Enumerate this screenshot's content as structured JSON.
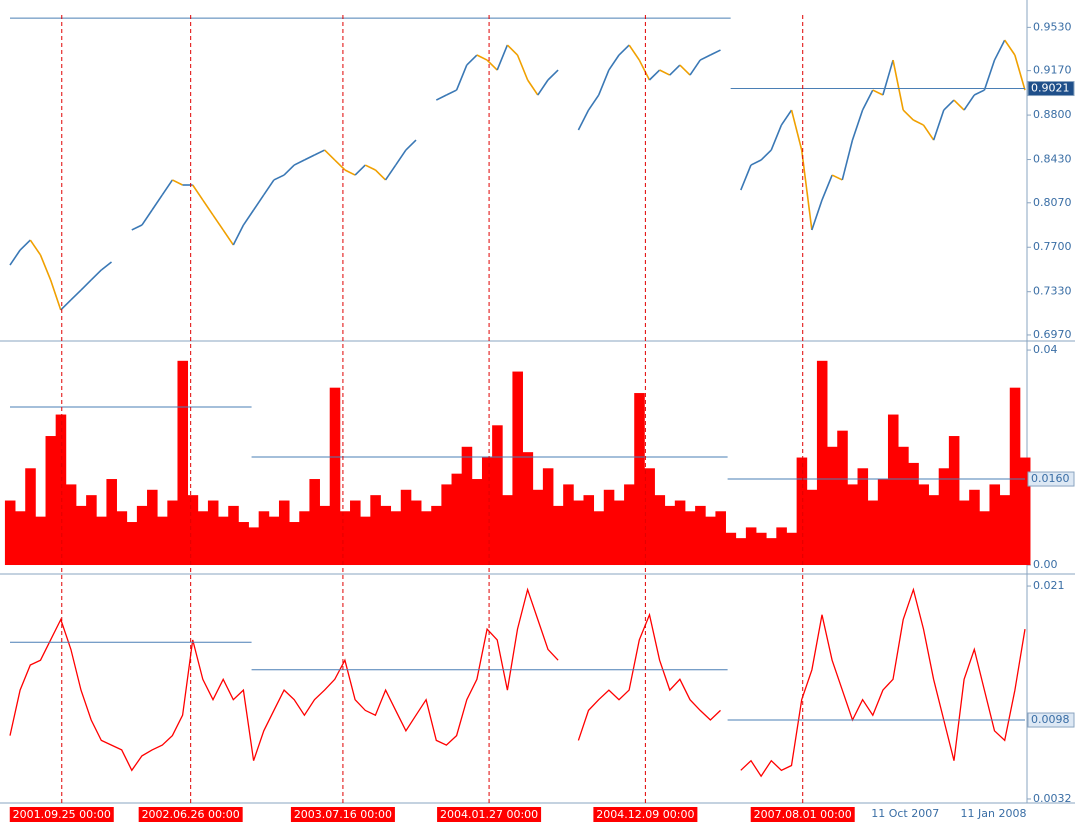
{
  "chart_data": [
    {
      "type": "line",
      "color": "#3a78b5",
      "down_color": "#f0a000",
      "level_color": "#4a7fb5",
      "values": [
        0.7552,
        0.7677,
        0.776,
        0.7636,
        0.7428,
        0.7178,
        0.7261,
        0.7344,
        0.7428,
        0.7511,
        0.7577,
        null,
        0.7844,
        0.7885,
        0.801,
        0.8135,
        0.826,
        0.8218,
        0.8218,
        0.8093,
        0.7968,
        0.7844,
        0.7719,
        0.7885,
        0.801,
        0.8135,
        0.826,
        0.8301,
        0.8384,
        0.8426,
        0.8468,
        0.8509,
        0.8426,
        0.8343,
        0.8301,
        0.8384,
        0.8343,
        0.826,
        0.8384,
        0.8509,
        0.8592,
        null,
        0.8925,
        0.8967,
        0.9008,
        0.9216,
        0.93,
        0.9258,
        0.9175,
        0.9383,
        0.93,
        0.9092,
        0.8967,
        0.9092,
        0.9175,
        null,
        0.8676,
        0.8842,
        0.8967,
        0.9175,
        0.93,
        0.9383,
        0.9258,
        0.9092,
        0.9175,
        0.9133,
        0.9216,
        0.9133,
        0.9258,
        0.93,
        0.9341,
        null,
        0.8176,
        0.8384,
        0.8426,
        0.8509,
        0.8717,
        0.8842,
        0.8509,
        0.7844,
        0.8093,
        0.8301,
        0.826,
        0.8592,
        0.8842,
        0.9008,
        0.8967,
        0.9258,
        0.8842,
        0.8759,
        0.8717,
        0.8592,
        0.8842,
        0.8925,
        0.8842,
        0.8967,
        0.9008,
        0.9258,
        0.9424,
        0.93,
        0.9008
      ],
      "ylim": [
        0.6928,
        0.9633
      ],
      "yticks": [
        {
          "value": 0.953,
          "label": "0.9530"
        },
        {
          "value": 0.917,
          "label": "0.9170"
        },
        {
          "value": 0.88,
          "label": "0.8800"
        },
        {
          "value": 0.843,
          "label": "0.8430"
        },
        {
          "value": 0.807,
          "label": "0.8070"
        },
        {
          "value": 0.77,
          "label": "0.7700"
        },
        {
          "value": 0.733,
          "label": "0.7330"
        },
        {
          "value": 0.697,
          "label": "0.6970"
        }
      ],
      "levels": [
        {
          "value": 0.9607,
          "from": 0,
          "to": 71
        },
        {
          "value": 0.9021,
          "from": 71,
          "to": 100,
          "label": "0.9021"
        }
      ],
      "markers": [
        {
          "x": 5.1,
          "label": "2001.09.25 00:00"
        },
        {
          "x": 17.8,
          "label": "2002.06.26 00:00"
        },
        {
          "x": 32.8,
          "label": "2003.07.16 00:00"
        },
        {
          "x": 47.2,
          "label": "2004.01.27 00:00"
        },
        {
          "x": 62.6,
          "label": "2004.12.09 00:00"
        },
        {
          "x": 78.1,
          "label": "2007.08.01 00:00"
        }
      ]
    },
    {
      "type": "bar",
      "color": "#ff0000",
      "level_color": "#4a7fb5",
      "values": [
        0.012,
        0.01,
        0.018,
        0.009,
        0.024,
        0.028,
        0.015,
        0.011,
        0.013,
        0.009,
        0.016,
        0.01,
        0.008,
        0.011,
        0.014,
        0.009,
        0.012,
        0.038,
        0.013,
        0.01,
        0.012,
        0.009,
        0.011,
        0.008,
        0.007,
        0.01,
        0.009,
        0.012,
        0.008,
        0.01,
        0.016,
        0.011,
        0.033,
        0.01,
        0.012,
        0.009,
        0.013,
        0.011,
        0.01,
        0.014,
        0.012,
        0.01,
        0.011,
        0.015,
        0.017,
        0.022,
        0.016,
        0.02,
        0.026,
        0.013,
        0.036,
        0.021,
        0.014,
        0.018,
        0.011,
        0.015,
        0.012,
        0.013,
        0.01,
        0.014,
        0.012,
        0.015,
        0.032,
        0.018,
        0.013,
        0.011,
        0.012,
        0.01,
        0.011,
        0.009,
        0.01,
        0.006,
        0.005,
        0.007,
        0.006,
        0.005,
        0.007,
        0.006,
        0.02,
        0.014,
        0.038,
        0.022,
        0.025,
        0.015,
        0.018,
        0.012,
        0.016,
        0.028,
        0.022,
        0.019,
        0.015,
        0.013,
        0.018,
        0.024,
        0.012,
        0.014,
        0.01,
        0.015,
        0.013,
        0.033,
        0.02
      ],
      "ylim": [
        -0.0013,
        0.0415
      ],
      "yticks": [
        0.04,
        {
          "value": 0.016,
          "label": "0.0160"
        },
        {
          "value": 0,
          "label": "0.00"
        }
      ],
      "levels": [
        {
          "value": 0.0294,
          "from": 0,
          "to": 23.8
        },
        {
          "value": 0.0201,
          "from": 23.8,
          "to": 70.7
        },
        {
          "value": 0.016,
          "from": 70.7,
          "to": 100,
          "label": "0.0160"
        }
      ]
    },
    {
      "type": "line",
      "color": "#ff0000",
      "level_color": "#4a7fb5",
      "values": [
        0.0085,
        0.0123,
        0.0144,
        0.0148,
        0.0165,
        0.0182,
        0.0157,
        0.0123,
        0.0098,
        0.0081,
        0.0077,
        0.0073,
        0.0056,
        0.0068,
        0.0073,
        0.0077,
        0.0085,
        0.0102,
        0.0165,
        0.0132,
        0.0115,
        0.0132,
        0.0115,
        0.0123,
        0.0064,
        0.0089,
        0.0106,
        0.0123,
        0.0115,
        0.0102,
        0.0115,
        0.0123,
        0.0132,
        0.0148,
        0.0115,
        0.0106,
        0.0102,
        0.0123,
        0.0106,
        0.0089,
        0.0102,
        0.0115,
        0.0081,
        0.0077,
        0.0085,
        0.0115,
        0.0132,
        0.0174,
        0.0165,
        0.0123,
        0.0174,
        0.0207,
        0.0182,
        0.0157,
        0.0148,
        null,
        0.0081,
        0.0106,
        0.0115,
        0.0123,
        0.0115,
        0.0123,
        0.0165,
        0.0186,
        0.0148,
        0.0123,
        0.0132,
        0.0115,
        0.0106,
        0.0098,
        0.0106,
        null,
        0.0056,
        0.0064,
        0.0051,
        0.0064,
        0.0056,
        0.006,
        0.0115,
        0.014,
        0.0186,
        0.0148,
        0.0123,
        0.0098,
        0.0115,
        0.0102,
        0.0123,
        0.0132,
        0.0182,
        0.0207,
        0.0174,
        0.0132,
        0.0098,
        0.0064,
        0.0132,
        0.0157,
        0.0123,
        0.0089,
        0.0081,
        0.0123,
        0.0174
      ],
      "ylim": [
        0.00303,
        0.02184
      ],
      "yticks": [
        0.021,
        {
          "value": 0.0098,
          "label": "0.0098"
        },
        0.0032
      ],
      "levels": [
        {
          "value": 0.0163,
          "from": 0,
          "to": 23.8
        },
        {
          "value": 0.014,
          "from": 23.8,
          "to": 70.7
        },
        {
          "value": 0.0098,
          "from": 70.7,
          "to": 100,
          "label": "0.0098"
        }
      ],
      "xticks": [
        {
          "value": 88.2,
          "label": "11 Oct 2007"
        },
        {
          "value": 96.9,
          "label": "11 Jan 2008"
        }
      ]
    }
  ]
}
